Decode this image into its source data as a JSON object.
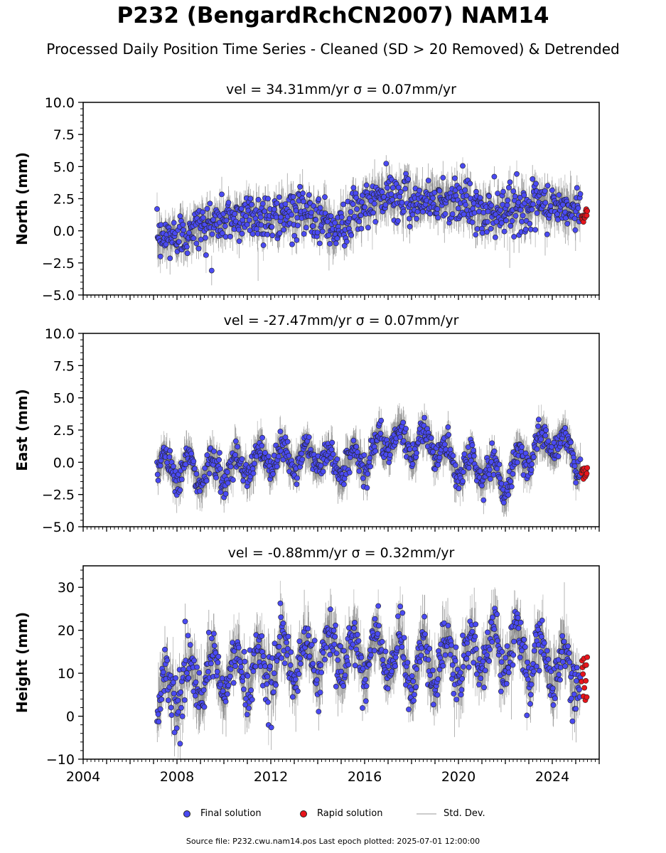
{
  "page": {
    "title": "P232 (BengardRchCN2007) NAM14",
    "subtitle": "Processed Daily Position Time Series - Cleaned (SD > 20 Removed) & Detrended",
    "source_note": "Source file: P232.cwu.nam14.pos  Last epoch plotted: 2025-07-01 12:00:00"
  },
  "legend": {
    "final_label": "Final solution",
    "rapid_label": "Rapid solution",
    "sd_label": "Std. Dev."
  },
  "colors": {
    "final": "#4a4af2",
    "rapid": "#e8141b",
    "sd": "#c8c8c8",
    "sd_dense": "#555555"
  },
  "chart_data": [
    {
      "type": "scatter",
      "panel": "north",
      "title": "vel = 34.31mm/yr   σ = 0.07mm/yr",
      "ylabel": "North (mm)",
      "xlim": [
        2004,
        2026
      ],
      "ylim": [
        -5,
        10
      ],
      "yticks": [
        "−5.0",
        "−2.5",
        "0.0",
        "2.5",
        "5.0",
        "7.5",
        "10.0"
      ],
      "ytick_values": [
        -5,
        -2.5,
        0,
        2.5,
        5,
        7.5,
        10
      ],
      "data_start": 2007.15,
      "data_end": 2025.2,
      "rapid_start": 2025.25,
      "rapid_end": 2025.5,
      "series": [
        {
          "name": "Final solution",
          "x": [
            2007.2,
            2008.0,
            2009.0,
            2010.0,
            2011.0,
            2012.0,
            2013.0,
            2014.0,
            2014.6,
            2015.5,
            2016.0,
            2017.0,
            2018.0,
            2019.0,
            2020.0,
            2021.0,
            2022.0,
            2023.0,
            2024.0,
            2024.7,
            2025.2
          ],
          "y": [
            -0.8,
            -0.3,
            0.3,
            0.8,
            1.3,
            1.0,
            1.2,
            1.5,
            0.0,
            1.2,
            1.8,
            2.8,
            2.4,
            2.3,
            2.6,
            1.2,
            1.8,
            1.8,
            1.9,
            1.7,
            1.6
          ]
        },
        {
          "name": "Rapid solution",
          "x": [
            2025.3,
            2025.5
          ],
          "y": [
            0.5,
            1.8
          ]
        }
      ],
      "noise_sd": 0.9,
      "error_bar": 1.0
    },
    {
      "type": "scatter",
      "panel": "east",
      "title": "vel = -27.47mm/yr   σ = 0.07mm/yr",
      "ylabel": "East (mm)",
      "xlim": [
        2004,
        2026
      ],
      "ylim": [
        -5,
        10
      ],
      "yticks": [
        "−5.0",
        "−2.5",
        "0.0",
        "2.5",
        "5.0",
        "7.5",
        "10.0"
      ],
      "ytick_values": [
        -5,
        -2.5,
        0,
        2.5,
        5,
        7.5,
        10
      ],
      "data_start": 2007.15,
      "data_end": 2025.2,
      "rapid_start": 2025.25,
      "rapid_end": 2025.5,
      "series": [
        {
          "name": "Final solution",
          "x": [
            2007.2,
            2008.0,
            2009.0,
            2010.0,
            2011.0,
            2012.0,
            2013.0,
            2014.0,
            2015.0,
            2016.0,
            2017.0,
            2018.0,
            2019.0,
            2020.0,
            2021.0,
            2022.0,
            2023.0,
            2024.0,
            2025.2
          ],
          "y": [
            -0.3,
            -0.3,
            -0.8,
            -0.6,
            0.0,
            0.3,
            0.3,
            0.5,
            -0.3,
            0.3,
            1.8,
            1.5,
            1.5,
            -0.5,
            -0.3,
            -1.5,
            0.8,
            1.8,
            0.3
          ],
          "seasonal_amp": 1.0
        },
        {
          "name": "Rapid solution",
          "x": [
            2025.3,
            2025.5
          ],
          "y": [
            -1.4,
            -0.3
          ]
        }
      ],
      "noise_sd": 0.55,
      "error_bar": 1.0
    },
    {
      "type": "scatter",
      "panel": "height",
      "title": "vel = -0.88mm/yr   σ = 0.32mm/yr",
      "ylabel": "Height (mm)",
      "xlim": [
        2004,
        2026
      ],
      "ylim": [
        -10,
        35
      ],
      "yticks": [
        "−10",
        "0",
        "10",
        "20",
        "30"
      ],
      "ytick_values": [
        -10,
        0,
        10,
        20,
        30
      ],
      "xticks": [
        "2004",
        "2008",
        "2012",
        "2016",
        "2020",
        "2024"
      ],
      "xtick_values": [
        2004,
        2008,
        2012,
        2016,
        2020,
        2024
      ],
      "data_start": 2007.15,
      "data_end": 2025.2,
      "rapid_start": 2025.25,
      "rapid_end": 2025.5,
      "series": [
        {
          "name": "Final solution",
          "x": [
            2007.2,
            2008.0,
            2010.0,
            2012.0,
            2014.0,
            2016.0,
            2018.0,
            2020.0,
            2022.0,
            2024.0,
            2025.2
          ],
          "y": [
            5,
            7,
            10,
            12,
            14,
            15,
            12,
            13,
            16,
            12,
            10
          ],
          "seasonal_amp": 5.0
        },
        {
          "name": "Rapid solution",
          "x": [
            2025.3,
            2025.5
          ],
          "y": [
            1.7,
            14.8
          ]
        }
      ],
      "noise_sd": 3.2,
      "error_bar": 4.0
    }
  ]
}
